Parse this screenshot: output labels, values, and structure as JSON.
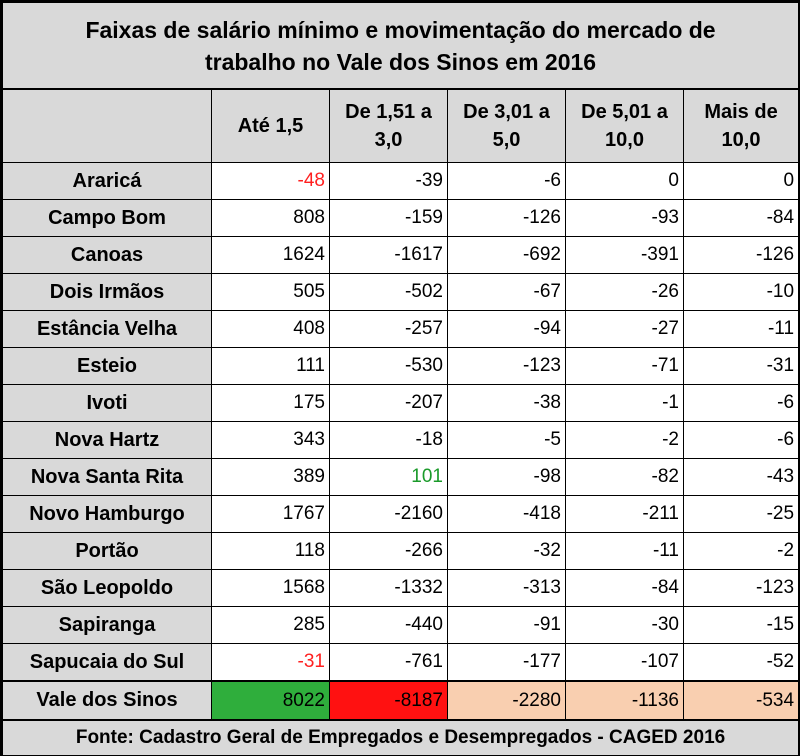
{
  "title_line1": "Faixas de salário mínimo e movimentação do mercado de",
  "title_line2": "trabalho no Vale dos Sinos em 2016",
  "columns": [
    {
      "line1": "Até 1,5",
      "line2": ""
    },
    {
      "line1": "De 1,51 a",
      "line2": "3,0"
    },
    {
      "line1": "De 3,01 a",
      "line2": "5,0"
    },
    {
      "line1": "De 5,01 a",
      "line2": "10,0"
    },
    {
      "line1": "Mais de",
      "line2": "10,0"
    }
  ],
  "rows": [
    {
      "name": "Araricá",
      "values": [
        "-48",
        "-39",
        "-6",
        "0",
        "0"
      ]
    },
    {
      "name": "Campo Bom",
      "values": [
        "808",
        "-159",
        "-126",
        "-93",
        "-84"
      ]
    },
    {
      "name": "Canoas",
      "values": [
        "1624",
        "-1617",
        "-692",
        "-391",
        "-126"
      ]
    },
    {
      "name": "Dois Irmãos",
      "values": [
        "505",
        "-502",
        "-67",
        "-26",
        "-10"
      ]
    },
    {
      "name": "Estância Velha",
      "values": [
        "408",
        "-257",
        "-94",
        "-27",
        "-11"
      ]
    },
    {
      "name": "Esteio",
      "values": [
        "111",
        "-530",
        "-123",
        "-71",
        "-31"
      ]
    },
    {
      "name": "Ivoti",
      "values": [
        "175",
        "-207",
        "-38",
        "-1",
        "-6"
      ]
    },
    {
      "name": "Nova Hartz",
      "values": [
        "343",
        "-18",
        "-5",
        "-2",
        "-6"
      ]
    },
    {
      "name": "Nova Santa Rita",
      "values": [
        "389",
        "101",
        "-98",
        "-82",
        "-43"
      ]
    },
    {
      "name": "Novo Hamburgo",
      "values": [
        "1767",
        "-2160",
        "-418",
        "-211",
        "-25"
      ]
    },
    {
      "name": "Portão",
      "values": [
        "118",
        "-266",
        "-32",
        "-11",
        "-2"
      ]
    },
    {
      "name": "São Leopoldo",
      "values": [
        "1568",
        "-1332",
        "-313",
        "-84",
        "-123"
      ]
    },
    {
      "name": "Sapiranga",
      "values": [
        "285",
        "-440",
        "-91",
        "-30",
        "-15"
      ]
    },
    {
      "name": "Sapucaia do Sul",
      "values": [
        "-31",
        "-761",
        "-177",
        "-107",
        "-52"
      ]
    }
  ],
  "total": {
    "name": "Vale dos Sinos",
    "values": [
      "8022",
      "-8187",
      "-2280",
      "-1136",
      "-534"
    ]
  },
  "footer": "Fonte: Cadastro Geral de Empregados e Desempregados - CAGED 2016",
  "colors": {
    "header_bg": "#d9d9d9",
    "highlight_red_text": "#ff2020",
    "highlight_green_text": "#1a9a2a",
    "total_green_bg": "#2fae3c",
    "total_red_bg": "#ff1111",
    "total_peach_bg": "#f9cfb0"
  }
}
